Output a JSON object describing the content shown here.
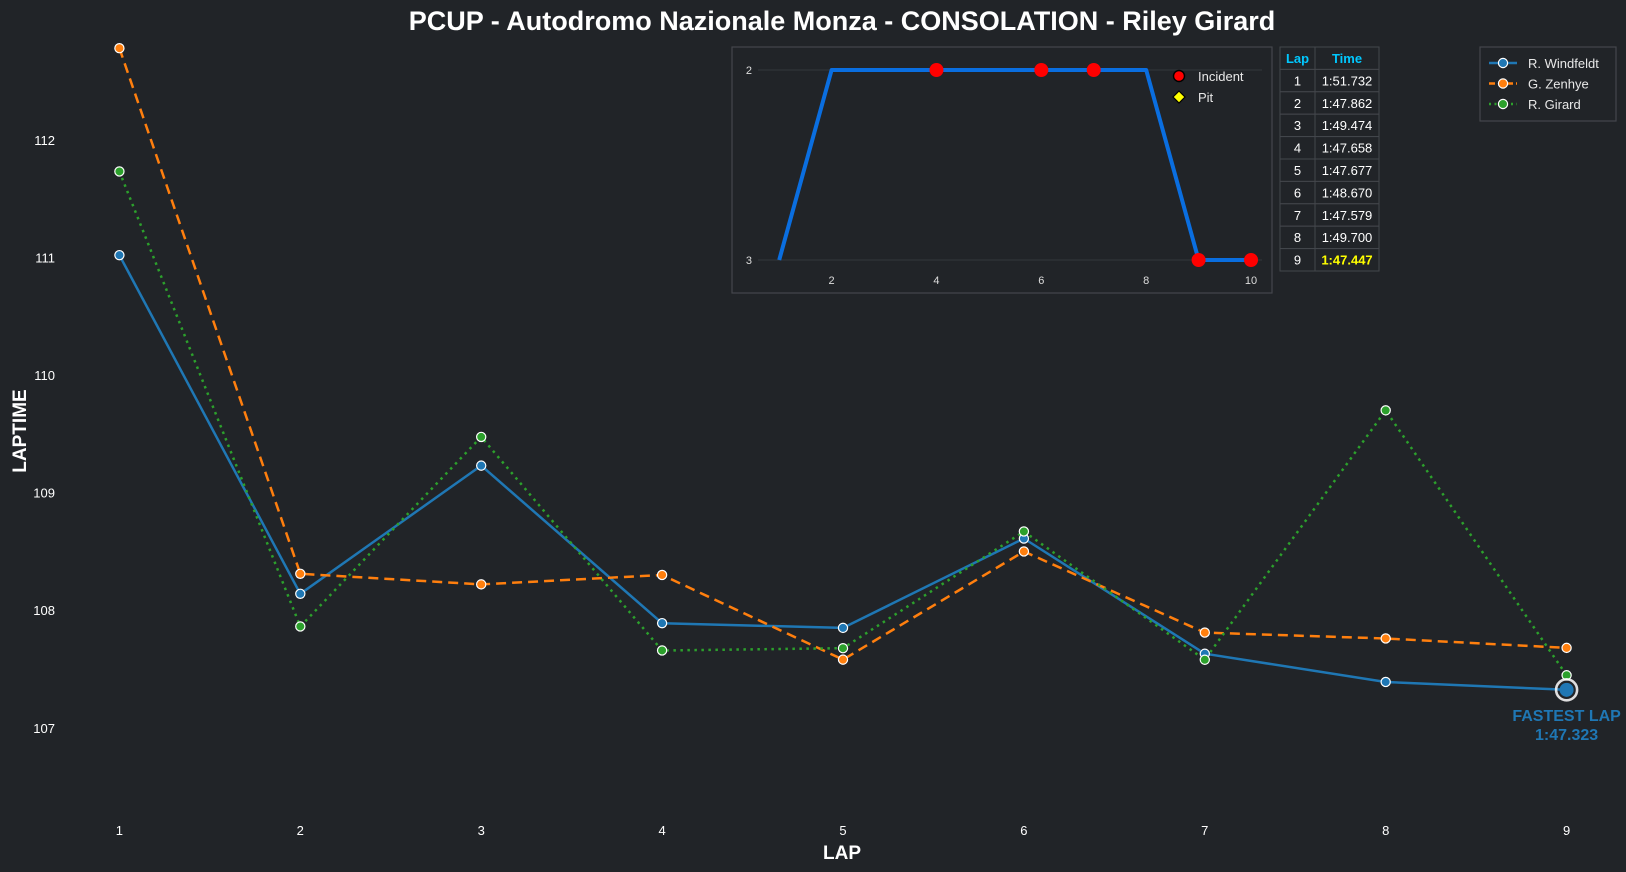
{
  "chart_data": {
    "type": "line",
    "title": "PCUP - Autodromo Nazionale Monza - CONSOLATION - Riley Girard",
    "xlabel": "LAP",
    "ylabel": "LAPTIME",
    "x": [
      1,
      2,
      3,
      4,
      5,
      6,
      7,
      8,
      9
    ],
    "xlim": [
      0.55,
      9.45
    ],
    "ylim": [
      106.25,
      112.85
    ],
    "yticks": [
      107,
      108,
      109,
      110,
      111,
      112
    ],
    "grid": false,
    "legend": "top-right",
    "series": [
      {
        "name": "R. Windfeldt",
        "color": "#1f77b4",
        "dash": "solid",
        "values": [
          111.02,
          108.14,
          109.23,
          107.89,
          107.85,
          108.61,
          107.63,
          107.39,
          107.323
        ]
      },
      {
        "name": "G. Zenhye",
        "color": "#ff7f0e",
        "dash": "dashed",
        "values": [
          112.78,
          108.31,
          108.22,
          108.3,
          107.58,
          108.5,
          107.81,
          107.76,
          107.68
        ]
      },
      {
        "name": "R. Girard",
        "color": "#2ca02c",
        "dash": "dotted",
        "values": [
          111.732,
          107.862,
          109.474,
          107.658,
          107.677,
          108.67,
          107.579,
          109.7,
          107.447
        ]
      }
    ],
    "fastest_lap": {
      "label": "FASTEST LAP",
      "time": "1:47.323",
      "lap": 9,
      "value": 107.323,
      "color": "#1f77b4"
    },
    "position_inset": {
      "type": "line",
      "color": "#0a6ee0",
      "x": [
        1,
        2,
        3,
        4,
        5,
        6,
        7,
        8,
        9,
        10
      ],
      "values": [
        3,
        2,
        2,
        2,
        2,
        2,
        2,
        2,
        3,
        3
      ],
      "xticks": [
        2,
        4,
        6,
        8,
        10
      ],
      "yticks": [
        2,
        3
      ],
      "xlim": [
        0.1,
        10.4
      ],
      "ylim": [
        3.0,
        2.0
      ],
      "incident_laps": [
        4,
        6,
        7,
        9,
        10
      ],
      "pit_laps": [],
      "legend": [
        {
          "label": "Incident",
          "marker": "circle",
          "color": "#ff0000"
        },
        {
          "label": "Pit",
          "marker": "diamond",
          "color": "#ffff00"
        }
      ]
    },
    "lap_table": {
      "headers": [
        "Lap",
        "Time"
      ],
      "rows": [
        [
          "1",
          "1:51.732"
        ],
        [
          "2",
          "1:47.862"
        ],
        [
          "3",
          "1:49.474"
        ],
        [
          "4",
          "1:47.658"
        ],
        [
          "5",
          "1:47.677"
        ],
        [
          "6",
          "1:48.670"
        ],
        [
          "7",
          "1:47.579"
        ],
        [
          "8",
          "1:49.700"
        ],
        [
          "9",
          "1:47.447"
        ]
      ],
      "best_row": 8,
      "header_color": "#00c8ff",
      "best_color": "#ffff00"
    }
  }
}
